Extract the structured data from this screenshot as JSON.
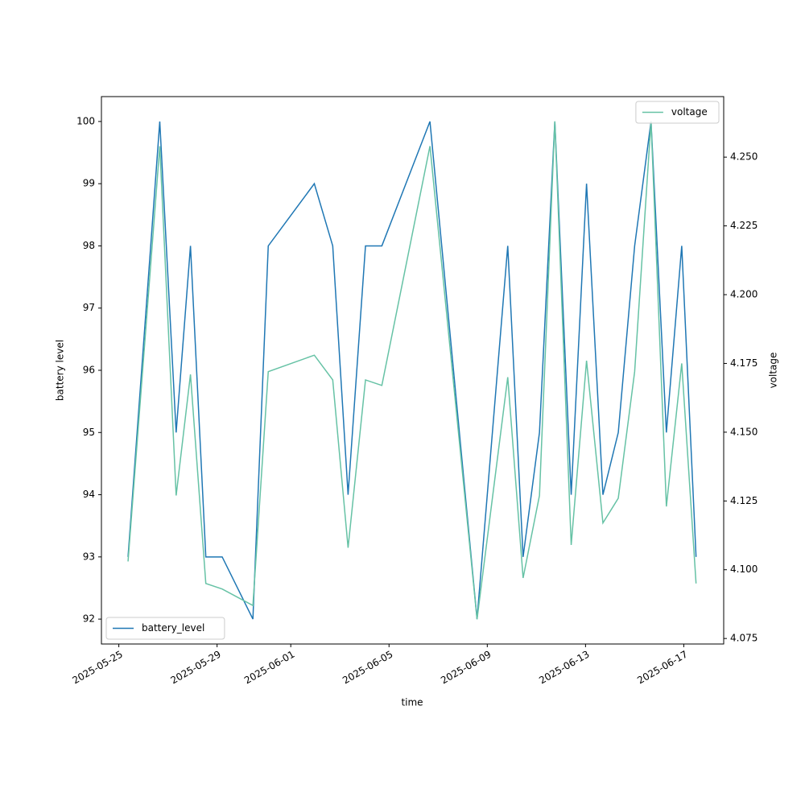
{
  "chart_data": {
    "type": "line",
    "xlabel": "time",
    "ylabel": "battery level",
    "y2label": "voltage",
    "x": [
      "2025-05-25T09:00",
      "2025-05-26T16:00",
      "2025-05-27T08:00",
      "2025-05-27T22:00",
      "2025-05-28T13:00",
      "2025-05-29T05:00",
      "2025-05-30T11:00",
      "2025-05-31T02:00",
      "2025-06-01T23:00",
      "2025-06-02T17:00",
      "2025-06-03T08:00",
      "2025-06-04T01:00",
      "2025-06-04T17:00",
      "2025-06-06T16:00",
      "2025-06-08T14:00",
      "2025-06-09T20:00",
      "2025-06-10T11:00",
      "2025-06-11T03:00",
      "2025-06-11T18:00",
      "2025-06-12T10:00",
      "2025-06-13T01:00",
      "2025-06-13T17:00",
      "2025-06-14T08:00",
      "2025-06-15T00:00",
      "2025-06-15T16:00",
      "2025-06-16T07:00",
      "2025-06-16T22:00",
      "2025-06-17T12:00"
    ],
    "series": [
      {
        "name": "battery_level",
        "color": "#1f77b4",
        "legend": "lower left",
        "values": [
          93,
          100,
          95,
          98,
          93,
          93,
          92,
          98,
          99,
          98,
          94,
          98,
          98,
          100,
          92,
          98,
          93,
          95,
          100,
          94,
          99,
          94,
          95,
          98,
          100,
          95,
          98,
          93
        ]
      },
      {
        "name": "voltage",
        "color": "#66c2a5",
        "axis": "y2",
        "legend": "upper right",
        "values": [
          4.103,
          4.254,
          4.127,
          4.171,
          4.095,
          4.093,
          4.087,
          4.172,
          4.178,
          4.169,
          4.108,
          4.169,
          4.167,
          4.254,
          4.082,
          4.17,
          4.097,
          4.127,
          4.263,
          4.109,
          4.176,
          4.117,
          4.126,
          4.172,
          4.263,
          4.123,
          4.175,
          4.095
        ]
      }
    ],
    "xlim": [
      "2025-05-24T07:00",
      "2025-06-18T15:00"
    ],
    "xticks": [
      "2025-05-25",
      "2025-05-29",
      "2025-06-01",
      "2025-06-05",
      "2025-06-09",
      "2025-06-13",
      "2025-06-17"
    ],
    "ylim": [
      91.6,
      100.4
    ],
    "yticks": [
      92,
      93,
      94,
      95,
      96,
      97,
      98,
      99,
      100
    ],
    "y2lim": [
      4.073,
      4.272
    ],
    "y2ticks": [
      4.075,
      {
        "value": 4.1,
        "label": "4.100"
      },
      4.125,
      {
        "value": 4.15,
        "label": "4.150"
      },
      4.175,
      {
        "value": 4.2,
        "label": "4.200"
      },
      4.225,
      {
        "value": 4.25,
        "label": "4.250"
      }
    ]
  }
}
